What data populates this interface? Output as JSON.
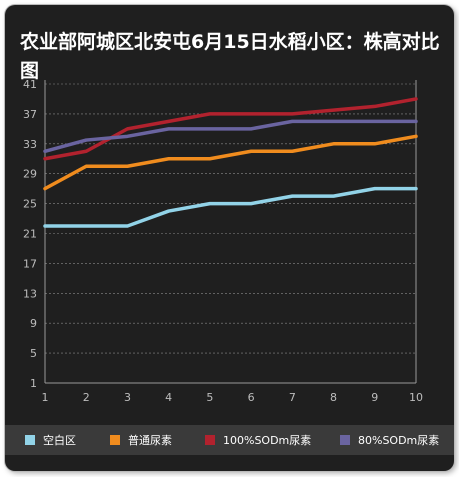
{
  "chart_data": {
    "type": "line",
    "title": "农业部阿城区北安屯6月15日水稻小区：株高对比图",
    "x": [
      1,
      2,
      3,
      4,
      5,
      6,
      7,
      8,
      9,
      10
    ],
    "ylim": [
      1,
      41
    ],
    "yticks": [
      1,
      5,
      9,
      13,
      17,
      21,
      25,
      29,
      33,
      37,
      41
    ],
    "grid": true,
    "legend_position": "bottom",
    "series": [
      {
        "name": "空白区",
        "color": "#92d3e8",
        "values": [
          22,
          22,
          22,
          24,
          25,
          25,
          26,
          26,
          27,
          27
        ]
      },
      {
        "name": "普通尿素",
        "color": "#f08c1e",
        "values": [
          27,
          30,
          30,
          31,
          31,
          32,
          32,
          33,
          33,
          34
        ]
      },
      {
        "name": "100%SODm尿素",
        "color": "#b2222e",
        "values": [
          31,
          32,
          35,
          36,
          37,
          37,
          37,
          37.5,
          38,
          39
        ]
      },
      {
        "name": "80%SODm尿素",
        "color": "#6a64a0",
        "values": [
          32,
          33.5,
          34,
          35,
          35,
          35,
          36,
          36,
          36,
          36
        ]
      }
    ]
  }
}
